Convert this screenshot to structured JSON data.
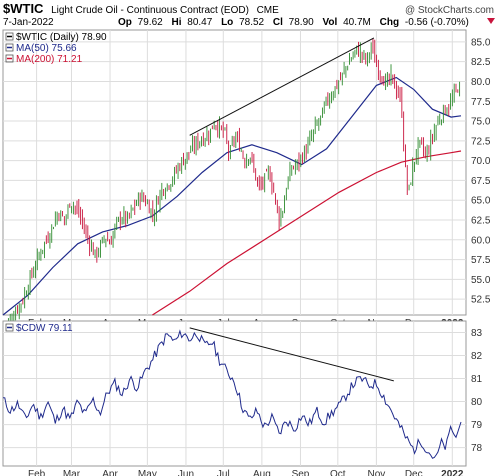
{
  "header": {
    "symbol": "$WTIC",
    "name": "Light Crude Oil - Continuous Contract (EOD)",
    "exchange": "CME",
    "watermark": "@ StockCharts.com",
    "date": "7-Jan-2022",
    "quote": {
      "op_label": "Op",
      "op": "79.62",
      "hi_label": "Hi",
      "hi": "80.47",
      "lo_label": "Lo",
      "lo": "78.52",
      "cl_label": "Cl",
      "cl": "78.90",
      "vol_label": "Vol",
      "vol": "40.7M",
      "chg_label": "Chg",
      "chg": "-0.56 (-0.70%)"
    }
  },
  "colors": {
    "up": "#2e8b2e",
    "down": "#c8143c",
    "ma50": "#1f2a8c",
    "ma200": "#cc1133",
    "cdw": "#1f2a8c",
    "trend": "#111111",
    "grid": "#dddddd"
  },
  "chart_data": [
    {
      "type": "candlestick",
      "legend": [
        {
          "label": "$WTIC (Daily) 78.90",
          "color": "#000000"
        },
        {
          "label": "MA(50) 75.66",
          "color": "#1f2a8c"
        },
        {
          "label": "MA(200) 71.21",
          "color": "#cc1133"
        }
      ],
      "y_ticks": [
        "52.5",
        "55.0",
        "57.5",
        "60.0",
        "62.5",
        "65.0",
        "67.5",
        "70.0",
        "72.5",
        "75.0",
        "77.5",
        "80.0",
        "82.5",
        "85.0"
      ],
      "ylim": [
        50.5,
        86.5
      ],
      "x_labels": [
        "Feb",
        "Mar",
        "Apr",
        "May",
        "Jun",
        "Jul",
        "Aug",
        "Sep",
        "Oct",
        "Nov",
        "Dec",
        "2022"
      ],
      "x_label_days": [
        27,
        55,
        86,
        116,
        147,
        177,
        208,
        239,
        269,
        300,
        330,
        361
      ],
      "xlim": [
        0,
        372
      ],
      "close_path": [
        [
          0,
          48.0
        ],
        [
          8,
          50.5
        ],
        [
          16,
          52.5
        ],
        [
          24,
          56.0
        ],
        [
          30,
          58.5
        ],
        [
          38,
          61.0
        ],
        [
          44,
          63.5
        ],
        [
          50,
          62.5
        ],
        [
          54,
          65.0
        ],
        [
          58,
          64.0
        ],
        [
          62,
          63.0
        ],
        [
          66,
          61.0
        ],
        [
          70,
          59.5
        ],
        [
          74,
          58.0
        ],
        [
          78,
          59.0
        ],
        [
          82,
          60.5
        ],
        [
          86,
          59.5
        ],
        [
          90,
          61.5
        ],
        [
          95,
          63.0
        ],
        [
          100,
          62.5
        ],
        [
          105,
          64.0
        ],
        [
          110,
          65.5
        ],
        [
          114,
          65.0
        ],
        [
          118,
          64.0
        ],
        [
          121,
          63.0
        ],
        [
          124,
          65.0
        ],
        [
          128,
          66.5
        ],
        [
          132,
          67.0
        ],
        [
          137,
          68.0
        ],
        [
          142,
          69.5
        ],
        [
          147,
          70.5
        ],
        [
          152,
          71.5
        ],
        [
          157,
          72.5
        ],
        [
          162,
          73.0
        ],
        [
          166,
          73.5
        ],
        [
          170,
          75.0
        ],
        [
          174,
          74.0
        ],
        [
          178,
          73.5
        ],
        [
          182,
          70.5
        ],
        [
          186,
          73.0
        ],
        [
          190,
          72.0
        ],
        [
          194,
          70.0
        ],
        [
          198,
          71.0
        ],
        [
          202,
          68.5
        ],
        [
          206,
          66.5
        ],
        [
          210,
          67.5
        ],
        [
          214,
          68.5
        ],
        [
          217,
          66.5
        ],
        [
          220,
          64.0
        ],
        [
          222,
          62.5
        ],
        [
          225,
          64.0
        ],
        [
          228,
          67.0
        ],
        [
          232,
          69.0
        ],
        [
          236,
          69.5
        ],
        [
          240,
          70.5
        ],
        [
          244,
          71.5
        ],
        [
          248,
          73.0
        ],
        [
          252,
          74.5
        ],
        [
          256,
          75.5
        ],
        [
          260,
          77.5
        ],
        [
          264,
          78.5
        ],
        [
          268,
          79.5
        ],
        [
          272,
          80.5
        ],
        [
          276,
          82.0
        ],
        [
          280,
          83.0
        ],
        [
          284,
          84.0
        ],
        [
          288,
          83.5
        ],
        [
          292,
          82.5
        ],
        [
          296,
          84.5
        ],
        [
          300,
          82.0
        ],
        [
          304,
          81.0
        ],
        [
          308,
          79.5
        ],
        [
          312,
          80.5
        ],
        [
          316,
          79.0
        ],
        [
          320,
          77.5
        ],
        [
          322,
          72.0
        ],
        [
          324,
          67.0
        ],
        [
          326,
          66.0
        ],
        [
          328,
          68.0
        ],
        [
          331,
          70.5
        ],
        [
          334,
          72.0
        ],
        [
          337,
          71.5
        ],
        [
          340,
          70.5
        ],
        [
          343,
          72.0
        ],
        [
          347,
          74.0
        ],
        [
          351,
          75.5
        ],
        [
          355,
          76.5
        ],
        [
          359,
          77.0
        ],
        [
          363,
          78.5
        ],
        [
          366,
          79.5
        ],
        [
          368,
          78.9
        ]
      ],
      "ma50": [
        [
          0,
          50.5
        ],
        [
          20,
          53.0
        ],
        [
          40,
          56.5
        ],
        [
          60,
          59.5
        ],
        [
          80,
          61.0
        ],
        [
          100,
          61.8
        ],
        [
          120,
          63.0
        ],
        [
          140,
          65.5
        ],
        [
          160,
          68.5
        ],
        [
          180,
          71.0
        ],
        [
          200,
          72.0
        ],
        [
          220,
          71.0
        ],
        [
          240,
          69.5
        ],
        [
          260,
          71.5
        ],
        [
          280,
          75.5
        ],
        [
          300,
          79.5
        ],
        [
          316,
          80.5
        ],
        [
          330,
          79.0
        ],
        [
          345,
          76.5
        ],
        [
          360,
          75.5
        ],
        [
          368,
          75.66
        ]
      ],
      "ma200": [
        [
          120,
          50.5
        ],
        [
          150,
          53.5
        ],
        [
          180,
          57.0
        ],
        [
          210,
          60.0
        ],
        [
          240,
          63.0
        ],
        [
          270,
          66.0
        ],
        [
          300,
          68.5
        ],
        [
          320,
          69.8
        ],
        [
          340,
          70.5
        ],
        [
          360,
          71.0
        ],
        [
          368,
          71.21
        ]
      ],
      "trendline": [
        [
          150,
          73.2
        ],
        [
          298,
          85.5
        ]
      ]
    },
    {
      "type": "line",
      "legend": [
        {
          "label": "$CDW 79.11",
          "color": "#1f2a8c"
        }
      ],
      "y_ticks": [
        "78",
        "79",
        "80",
        "81",
        "82",
        "83"
      ],
      "ylim": [
        77.2,
        83.5
      ],
      "x_labels": [
        "Feb",
        "Mar",
        "Apr",
        "May",
        "Jun",
        "Jul",
        "Aug",
        "Sep",
        "Oct",
        "Nov",
        "Dec",
        "2022"
      ],
      "x_label_days": [
        27,
        55,
        86,
        116,
        147,
        177,
        208,
        239,
        269,
        300,
        330,
        361
      ],
      "xlim": [
        0,
        372
      ],
      "series": [
        [
          0,
          80.1
        ],
        [
          6,
          79.6
        ],
        [
          12,
          79.9
        ],
        [
          18,
          79.2
        ],
        [
          24,
          79.9
        ],
        [
          30,
          79.3
        ],
        [
          36,
          80.0
        ],
        [
          42,
          79.1
        ],
        [
          48,
          79.7
        ],
        [
          54,
          79.2
        ],
        [
          60,
          80.0
        ],
        [
          66,
          79.4
        ],
        [
          72,
          80.1
        ],
        [
          78,
          79.5
        ],
        [
          84,
          80.4
        ],
        [
          90,
          80.8
        ],
        [
          96,
          80.3
        ],
        [
          102,
          81.0
        ],
        [
          108,
          80.6
        ],
        [
          114,
          81.3
        ],
        [
          120,
          81.8
        ],
        [
          126,
          82.4
        ],
        [
          132,
          82.9
        ],
        [
          138,
          82.6
        ],
        [
          144,
          83.0
        ],
        [
          150,
          82.7
        ],
        [
          156,
          83.0
        ],
        [
          162,
          82.4
        ],
        [
          168,
          82.6
        ],
        [
          174,
          81.8
        ],
        [
          180,
          81.3
        ],
        [
          186,
          80.9
        ],
        [
          192,
          79.8
        ],
        [
          198,
          79.2
        ],
        [
          204,
          79.6
        ],
        [
          210,
          78.9
        ],
        [
          216,
          79.3
        ],
        [
          222,
          78.6
        ],
        [
          228,
          79.2
        ],
        [
          234,
          78.8
        ],
        [
          240,
          79.4
        ],
        [
          246,
          79.0
        ],
        [
          252,
          79.6
        ],
        [
          258,
          79.1
        ],
        [
          264,
          79.5
        ],
        [
          270,
          79.8
        ],
        [
          276,
          80.3
        ],
        [
          282,
          80.8
        ],
        [
          288,
          81.0
        ],
        [
          294,
          80.7
        ],
        [
          300,
          80.8
        ],
        [
          306,
          80.2
        ],
        [
          312,
          79.6
        ],
        [
          318,
          79.0
        ],
        [
          324,
          78.4
        ],
        [
          330,
          77.9
        ],
        [
          336,
          78.3
        ],
        [
          342,
          77.8
        ],
        [
          348,
          77.5
        ],
        [
          352,
          78.2
        ],
        [
          356,
          78.0
        ],
        [
          360,
          78.9
        ],
        [
          364,
          78.4
        ],
        [
          368,
          79.11
        ]
      ],
      "trendline": [
        [
          150,
          83.2
        ],
        [
          314,
          80.9
        ]
      ]
    }
  ]
}
